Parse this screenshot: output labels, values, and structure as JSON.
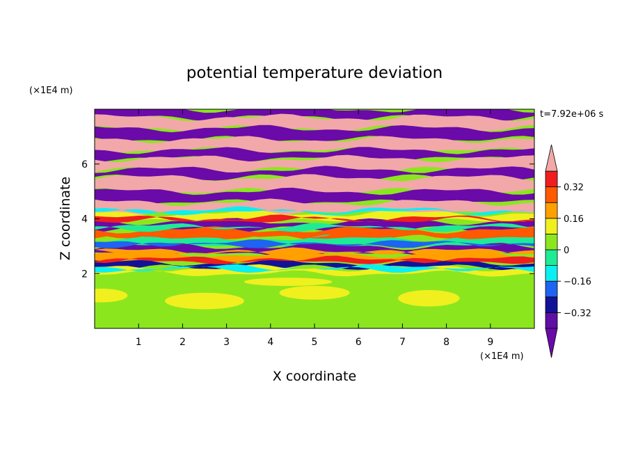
{
  "chart_data": {
    "type": "heatmap",
    "title": "potential temperature deviation",
    "xlabel": "X coordinate",
    "ylabel": "Z coordinate",
    "x_unit": "(×1E4 m)",
    "y_unit": "(×1E4 m)",
    "time_label": "t=7.92e+06 s",
    "xlim": [
      0,
      10
    ],
    "ylim": [
      0,
      8
    ],
    "x_ticks": [
      "1",
      "2",
      "3",
      "4",
      "5",
      "6",
      "7",
      "8",
      "9"
    ],
    "y_ticks": [
      "2",
      "4",
      "6"
    ],
    "colorbar": {
      "levels": [
        -0.4,
        -0.32,
        -0.24,
        -0.16,
        -0.08,
        0,
        0.08,
        0.16,
        0.24,
        0.32,
        0.4
      ],
      "labels": [
        "0.32",
        "0.16",
        "0",
        "−0.16",
        "−0.32"
      ],
      "label_values": [
        0.32,
        0.16,
        0,
        -0.16,
        -0.32
      ],
      "colors": [
        "#5f0fa6",
        "#121299",
        "#1e64f0",
        "#0af0f0",
        "#1eeb96",
        "#8ce61e",
        "#f0f01e",
        "#ffa000",
        "#ff5a00",
        "#f01e1e"
      ],
      "over_color": "#f2a8a8",
      "under_color": "#6a0aa8"
    },
    "fields": {
      "lower_band_top": 2.0,
      "lower_values": [
        0,
        0.08
      ],
      "upper_layers": [
        {
          "z": [
            7.7,
            8.0
          ],
          "value": -0.45
        },
        {
          "z": [
            7.3,
            7.7
          ],
          "value": 0.45
        },
        {
          "z": [
            6.9,
            7.3
          ],
          "value": -0.45
        },
        {
          "z": [
            6.5,
            6.9
          ],
          "value": 0.45
        },
        {
          "z": [
            6.2,
            6.5
          ],
          "value": -0.45
        },
        {
          "z": [
            5.8,
            6.2
          ],
          "value": 0.45
        },
        {
          "z": [
            5.5,
            5.8
          ],
          "value": -0.45
        },
        {
          "z": [
            5.0,
            5.5
          ],
          "value": 0.45
        },
        {
          "z": [
            4.6,
            5.0
          ],
          "value": -0.45
        },
        {
          "z": [
            4.2,
            4.6
          ],
          "value": 0.45
        },
        {
          "z": [
            3.9,
            4.2
          ],
          "value": 0.08
        },
        {
          "z": [
            3.6,
            3.9
          ],
          "value": -0.45
        },
        {
          "z": [
            3.3,
            3.6
          ],
          "value": 0.24
        },
        {
          "z": [
            3.0,
            3.3
          ],
          "value": -0.08
        },
        {
          "z": [
            2.7,
            3.0
          ],
          "value": -0.45
        },
        {
          "z": [
            2.4,
            2.7
          ],
          "value": 0.16
        },
        {
          "z": [
            2.2,
            2.4
          ],
          "value": -0.32
        },
        {
          "z": [
            2.0,
            2.2
          ],
          "value": 0.08
        }
      ]
    }
  }
}
